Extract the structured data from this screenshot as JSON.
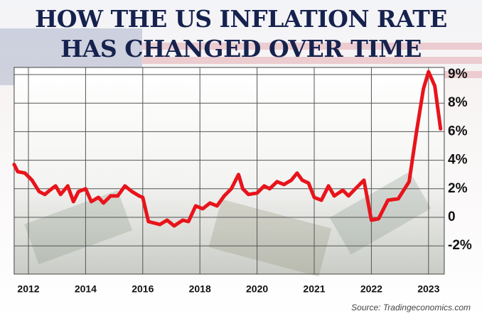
{
  "chart_data": {
    "type": "line",
    "title": [
      "HOW THE US INFLATION RATE",
      "HAS CHANGED OVER TIME"
    ],
    "source": "Source: Tradingeconomics.com",
    "color": "#e8141b",
    "x": [
      2011.5,
      2011.625,
      2011.875,
      2012.125,
      2012.375,
      2012.575,
      2012.75,
      2012.95,
      2013.125,
      2013.375,
      2013.575,
      2013.75,
      2014,
      2014.2,
      2014.45,
      2014.625,
      2014.875,
      2015.125,
      2015.375,
      2015.625,
      2015.875,
      2016,
      2016.2,
      2016.6,
      2016.85,
      2017.1,
      2017.4,
      2017.6,
      2017.85,
      2018.1,
      2018.35,
      2018.6,
      2018.85,
      2019.1,
      2019.35,
      2019.5,
      2019.7,
      2020,
      2020.125,
      2020.22,
      2020.35,
      2020.47,
      2020.6,
      2020.7,
      2020.79,
      2020.9,
      2021,
      2021.125,
      2021.25,
      2021.35,
      2021.5,
      2021.6,
      2021.72,
      2021.87,
      2022,
      2022.125,
      2022.29,
      2022.47,
      2022.66,
      2022.79,
      2022.91,
      2023,
      2023.11,
      2023.21
    ],
    "values": [
      3.7,
      3.2,
      3.1,
      2.6,
      1.8,
      1.6,
      1.9,
      2.2,
      1.6,
      2.2,
      1.1,
      1.8,
      2.0,
      1.1,
      1.4,
      1.0,
      1.5,
      1.5,
      2.2,
      1.8,
      1.5,
      1.4,
      -0.3,
      -0.5,
      -0.2,
      -0.6,
      -0.2,
      -0.3,
      0.8,
      0.6,
      1.0,
      0.8,
      1.5,
      2.0,
      3.0,
      2.0,
      1.6,
      1.7,
      2.2,
      2.0,
      2.5,
      2.3,
      2.6,
      3.1,
      2.6,
      2.4,
      1.4,
      1.2,
      2.2,
      1.5,
      1.9,
      1.5,
      2.0,
      2.6,
      -0.2,
      -0.1,
      1.2,
      1.3,
      2.5,
      6.0,
      8.5,
      9.1,
      8.6,
      6.2
    ],
    "xlim": [
      2011.5,
      2023.25
    ],
    "xticks": [
      2012,
      2014,
      2016,
      2018,
      2020,
      2021,
      2022,
      2023
    ],
    "ylim": [
      -4,
      9.25
    ],
    "yticks": [
      {
        "value": 9,
        "label": "9%"
      },
      {
        "value": 8,
        "label": "8%"
      },
      {
        "value": 6,
        "label": "6%"
      },
      {
        "value": 4,
        "label": "4%"
      },
      {
        "value": 2,
        "label": "2%"
      },
      0,
      {
        "value": -2,
        "label": "-2%"
      }
    ],
    "grid": true
  }
}
